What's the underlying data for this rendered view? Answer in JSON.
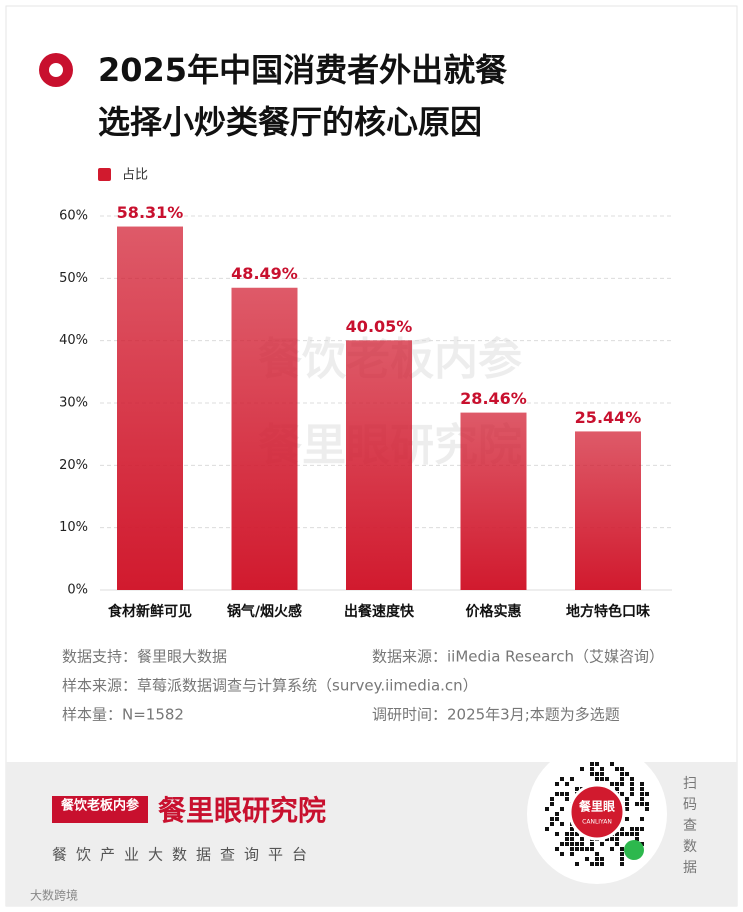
{
  "chart_data": {
    "type": "bar",
    "title": [
      "2025年中国消费者外出就餐",
      "选择小炒类餐厅的核心原因"
    ],
    "legend": "占比",
    "categories": [
      "食材新鲜可见",
      "锅气/烟火感",
      "出餐速度快",
      "价格实惠",
      "地方特色口味"
    ],
    "values": [
      58.31,
      48.49,
      40.05,
      28.46,
      25.44
    ],
    "value_labels": [
      "58.31%",
      "48.49%",
      "40.05%",
      "28.46%",
      "25.44%"
    ],
    "color": "#d11a2e",
    "ylim": [
      0,
      60
    ],
    "yticks": [
      {
        "value": 0,
        "label": "0%"
      },
      {
        "value": 10,
        "label": "10%"
      },
      {
        "value": 20,
        "label": "20%"
      },
      {
        "value": 30,
        "label": "30%"
      },
      {
        "value": 40,
        "label": "40%"
      },
      {
        "value": 50,
        "label": "50%"
      },
      {
        "value": 60,
        "label": "60%"
      }
    ],
    "grid": true,
    "watermark": [
      "餐饮老板内参",
      "餐里眼研究院"
    ],
    "notes": [
      [
        "数据支持：餐里眼大数据",
        "数据来源：iiMedia Research（艾媒咨询）"
      ],
      [
        "样本来源：草莓派数据调查与计算系统（survey.iimedia.cn）"
      ],
      [
        "样本量：N=1582",
        "调研时间：2025年3月;本题为多选题"
      ]
    ]
  },
  "footer": {
    "logo": "餐饮老板内参",
    "brand": "餐里眼研究院",
    "slogan": "餐饮产业大数据查询平台",
    "qr_center": "餐里眼",
    "qr_sub": "CANLIYAN",
    "scan": "扫码查数据",
    "corner_mark": "大数跨境"
  }
}
